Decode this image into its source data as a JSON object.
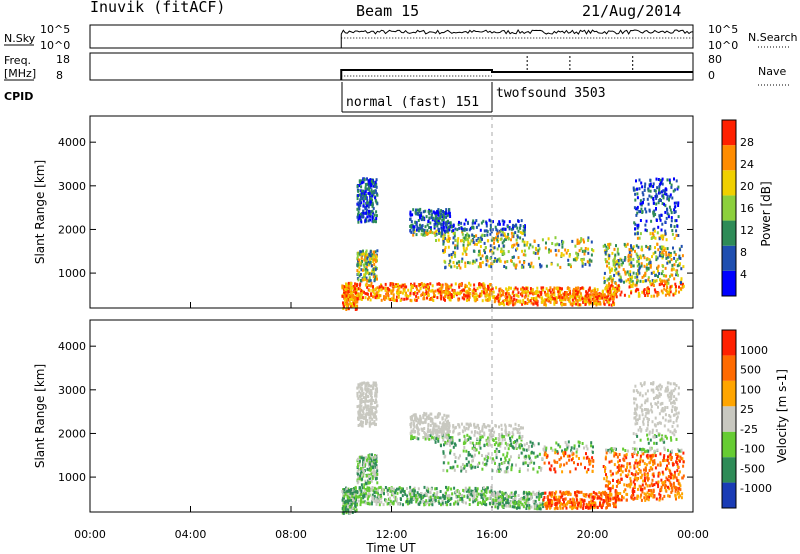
{
  "header": {
    "station": "Inuvik (fitACF)",
    "beam": "Beam 15",
    "date": "21/Aug/2014"
  },
  "summary_panel": {
    "nsky_label": "N.Sky",
    "nsky_ticks": [
      "10^5",
      "10^0"
    ],
    "nsearch_label": "N.Search",
    "nsearch_ticks": [
      "10^5",
      "10^0"
    ],
    "freq_label": "Freq.",
    "freq_unit": "[MHz]",
    "freq_ticks": [
      "18",
      "8"
    ],
    "nave_label": "Nave",
    "nave_ticks": [
      "80",
      "0"
    ],
    "cpid_label": "CPID",
    "cpid_segments": [
      {
        "name": "normal (fast) 151",
        "start_hour": 10.0
      },
      {
        "name": "twofsound 3503",
        "start_hour": 16.0
      }
    ]
  },
  "chart_data": [
    {
      "type": "heatmap",
      "name": "power-panel",
      "ylabel": "Slant Range [km]",
      "xlabel": "",
      "ylim": [
        200,
        4600
      ],
      "yticks": [
        "4000",
        "3000",
        "2000",
        "1000"
      ],
      "xlim": [
        0,
        24
      ],
      "colorbar": {
        "label": "Power [dB]",
        "ticks": [
          "28",
          "24",
          "20",
          "16",
          "12",
          "8",
          "4"
        ],
        "colors": [
          "#0000ff",
          "#1f4fb0",
          "#2e8b57",
          "#8ccf3c",
          "#f0d000",
          "#ff8c00",
          "#ff2000"
        ]
      },
      "data_start_hour": 10.0,
      "data_end_hour": 24.0
    },
    {
      "type": "heatmap",
      "name": "velocity-panel",
      "ylabel": "Slant Range [km]",
      "xlabel": "Time UT",
      "ylim": [
        200,
        4600
      ],
      "yticks": [
        "4000",
        "3000",
        "2000",
        "1000"
      ],
      "xlim": [
        0,
        24
      ],
      "xticks": [
        "00:00",
        "04:00",
        "08:00",
        "12:00",
        "16:00",
        "20:00",
        "00:00"
      ],
      "colorbar": {
        "label": "Velocity [m s-1]",
        "ticks": [
          "1000",
          "500",
          "100",
          "25",
          "-25",
          "-100",
          "-500",
          "-1000"
        ],
        "colors": [
          "#1a3cb5",
          "#2e8b57",
          "#66cc33",
          "#c8c8c0",
          "#ffa500",
          "#ff6a00",
          "#ff2000"
        ]
      },
      "data_start_hour": 10.0,
      "data_end_hour": 24.0
    }
  ]
}
